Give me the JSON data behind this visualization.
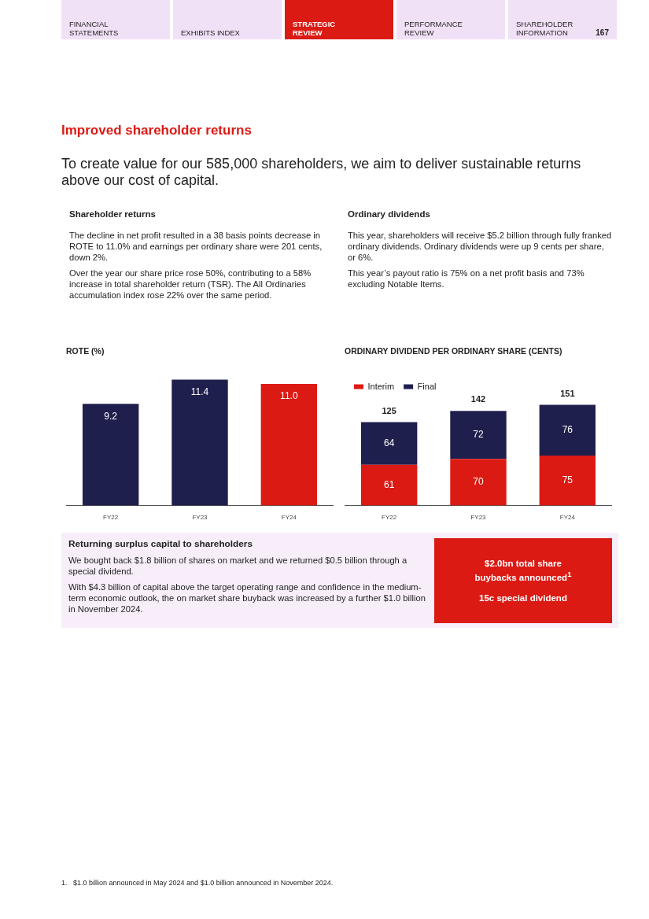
{
  "chart_data": [
    {
      "type": "other",
      "annotations": [
        "FINANCIAL STATEMENTS",
        "EXHIBITS INDEX",
        "STRATEGIC REVIEW",
        "PERFORMANCE REVIEW",
        "SHAREHOLDER INFORMATION",
        "167"
      ]
    },
    {
      "type": "other",
      "title": "Improved shareholder returns",
      "subtitle": "To create value for our 585,000 shareholders, we aim to deliver sustainable returns above our cost of capital.",
      "annotations": [
        "Shareholder returns",
        "The decline in net profit resulted in a 38 basis points decrease in ROTE to 11.0% and earnings per ordinary share were 201 cents, down 2%.",
        "Over the year our share price rose 50%, contributing to a 58% increase in total shareholder return (TSR). The All Ordinaries accumulation index rose 22% over the same period.",
        "Ordinary dividends",
        "This year, shareholders will receive $5.2 billion through fully franked ordinary dividends. Ordinary dividends were up 9 cents per share, or 6%.",
        "This year’s payout ratio is 75% on a net profit basis and 73% excluding Notable Items."
      ]
    },
    {
      "type": "bar",
      "title": "ROTE (%)",
      "categories": [
        "FY22",
        "FY23",
        "FY24"
      ],
      "values": [
        9.2,
        11.4,
        11.0
      ],
      "colors": [
        "#1f1f4d",
        "#1f1f4d",
        "#dc1a14"
      ],
      "value_labels": [
        "9.2",
        "11.4",
        "11.0"
      ]
    },
    {
      "type": "bar",
      "title": "ORDINARY DIVIDEND PER ORDINARY SHARE (CENTS)",
      "categories": [
        "FY22",
        "FY23",
        "FY24"
      ],
      "stacked": true,
      "legend": "top left",
      "data_labels": true,
      "totals": [
        "125",
        "142",
        "151"
      ],
      "series": [
        {
          "name": "Interim",
          "color": "#dc1a14",
          "values": [
            61,
            70,
            75
          ]
        },
        {
          "name": "Final",
          "color": "#1f1f4d",
          "values": [
            64,
            72,
            76
          ]
        }
      ]
    },
    {
      "type": "other",
      "title": "Returning surplus capital to shareholders",
      "annotations": [
        "We bought back $1.8 billion of shares on market and we returned $0.5 billion through a special dividend.",
        "With $4.3 billion of capital above the target operating range and confidence in the medium-term economic outlook, the on market share buyback was increased by a further $1.0 billion in November 2024.",
        "$2.0bn total share buybacks announced$^{1}$",
        "15c special dividend",
        "1.   $1.0 billion announced in May 2024 and $1.0 billion announced in November 2024."
      ]
    }
  ]
}
